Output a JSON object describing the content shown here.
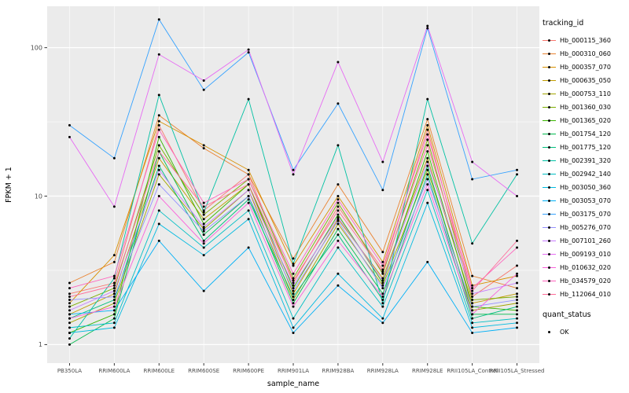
{
  "figure": {
    "background": "#FFFFFF",
    "panel_background": "#EBEBEB",
    "grid_color": "#FFFFFF",
    "tick_color": "#333333",
    "tick_label_color": "#4D4D4D"
  },
  "axes": {
    "x_label": "sample_name",
    "y_label": "FPKM + 1",
    "y_scale": "log10",
    "y_ticks": [
      1,
      10,
      100
    ],
    "y_minor_ticks": [
      3.1623,
      31.623
    ],
    "y_range": [
      0.75,
      190
    ]
  },
  "legend": {
    "tracking_title": "tracking_id",
    "quant_title": "quant_status",
    "quant_items": [
      {
        "label": "OK",
        "marker_color": "#000000"
      }
    ]
  },
  "chart_data": {
    "type": "line",
    "title": "",
    "xlabel": "sample_name",
    "ylabel": "FPKM + 1",
    "point_color": "#000000",
    "categories": [
      "PB350LA",
      "RRIM600LA",
      "RRIM600LE",
      "RRIM600SE",
      "RRIM600PE",
      "RRIM901LA",
      "RRIM928BA",
      "RRIM928LA",
      "RRIM928LE",
      "RRII105LA_Control",
      "RRII105LA_Stressed"
    ],
    "series": [
      {
        "name": "Hb_000115_360",
        "color": "#F8766D",
        "values": [
          2.2,
          2.6,
          30,
          8.0,
          14,
          2.6,
          8.5,
          3.2,
          28,
          2.1,
          3.4
        ]
      },
      {
        "name": "Hb_000310_060",
        "color": "#EA8331",
        "values": [
          2.6,
          3.6,
          35,
          21,
          14,
          3.8,
          12,
          4.2,
          33,
          2.9,
          2.4
        ]
      },
      {
        "name": "Hb_000357_070",
        "color": "#D89000",
        "values": [
          1.9,
          4.0,
          32,
          22,
          15,
          3.4,
          10,
          3.6,
          30,
          2.5,
          2.9
        ]
      },
      {
        "name": "Hb_000635_050",
        "color": "#C09B00",
        "values": [
          1.6,
          2.2,
          18,
          7.0,
          12,
          2.2,
          7.0,
          2.8,
          18,
          1.9,
          2.2
        ]
      },
      {
        "name": "Hb_000753_110",
        "color": "#A3A500",
        "values": [
          1.4,
          1.9,
          14,
          6.0,
          11,
          2.0,
          6.5,
          2.5,
          15,
          1.7,
          1.9
        ]
      },
      {
        "name": "Hb_001360_030",
        "color": "#7CAE00",
        "values": [
          1.8,
          2.4,
          22,
          7.5,
          13,
          2.8,
          9.0,
          3.0,
          24,
          2.0,
          2.1
        ]
      },
      {
        "name": "Hb_001365_020",
        "color": "#39B600",
        "values": [
          1.2,
          1.6,
          25,
          6.5,
          12,
          2.4,
          7.5,
          2.6,
          20,
          1.8,
          1.7
        ]
      },
      {
        "name": "Hb_001754_120",
        "color": "#00BB4E",
        "values": [
          1.0,
          1.5,
          20,
          5.5,
          10,
          1.9,
          6.0,
          2.2,
          16,
          1.6,
          1.6
        ]
      },
      {
        "name": "Hb_001775_120",
        "color": "#00BF7D",
        "values": [
          1.5,
          2.0,
          16,
          5.0,
          9.5,
          2.1,
          5.5,
          2.0,
          14,
          1.5,
          1.8
        ]
      },
      {
        "name": "Hb_002391_320",
        "color": "#00C1A3",
        "values": [
          1.1,
          2.8,
          48,
          7.8,
          45,
          3.5,
          22,
          1.9,
          45,
          4.8,
          14
        ]
      },
      {
        "name": "Hb_002942_140",
        "color": "#00BFC4",
        "values": [
          1.3,
          1.4,
          8.0,
          4.5,
          8.0,
          1.5,
          4.5,
          1.8,
          11,
          1.4,
          1.5
        ]
      },
      {
        "name": "Hb_003050_360",
        "color": "#00BAE0",
        "values": [
          1.2,
          1.3,
          6.5,
          4.0,
          7.0,
          1.3,
          3.0,
          1.5,
          9.0,
          1.3,
          1.4
        ]
      },
      {
        "name": "Hb_003053_070",
        "color": "#00B0F6",
        "values": [
          1.6,
          1.7,
          5.0,
          2.3,
          4.5,
          1.2,
          2.5,
          1.4,
          3.6,
          1.2,
          1.3
        ]
      },
      {
        "name": "Hb_003175_070",
        "color": "#35A2FF",
        "values": [
          30,
          18,
          155,
          52,
          93,
          15,
          42,
          11,
          135,
          13,
          15
        ]
      },
      {
        "name": "Hb_005276_070",
        "color": "#9590FF",
        "values": [
          2.0,
          2.1,
          12,
          5.8,
          10,
          2.3,
          6.8,
          2.4,
          13,
          1.8,
          2.0
        ]
      },
      {
        "name": "Hb_007101_260",
        "color": "#C77CFF",
        "values": [
          1.7,
          2.3,
          15,
          6.2,
          11,
          2.5,
          7.2,
          2.7,
          17,
          2.2,
          2.6
        ]
      },
      {
        "name": "Hb_009193_010",
        "color": "#E76BF3",
        "values": [
          25,
          8.5,
          90,
          60,
          97,
          14,
          80,
          17,
          140,
          17,
          10
        ]
      },
      {
        "name": "Hb_010632_020",
        "color": "#FA62DB",
        "values": [
          1.5,
          1.8,
          10,
          4.8,
          9.0,
          1.8,
          5.0,
          2.1,
          12,
          1.6,
          3.0
        ]
      },
      {
        "name": "Hb_034579_020",
        "color": "#FF62BC",
        "values": [
          2.4,
          2.9,
          28,
          9.0,
          13,
          3.0,
          9.5,
          3.4,
          26,
          2.4,
          4.5
        ]
      },
      {
        "name": "Hb_112064_010",
        "color": "#FF6A98",
        "values": [
          2.1,
          2.5,
          20,
          8.5,
          12,
          2.7,
          8.0,
          3.1,
          22,
          2.3,
          5.0
        ]
      }
    ]
  }
}
